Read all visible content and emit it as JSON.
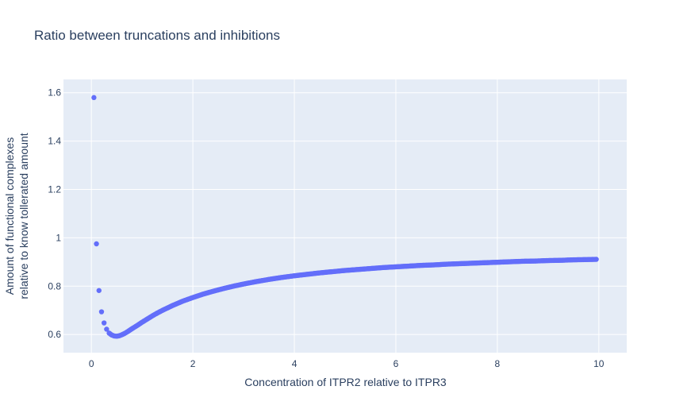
{
  "chart_data": {
    "type": "scatter",
    "title": "Ratio between truncations and inhibitions",
    "xlabel": "Concentration of ITPR2 relative to ITPR3",
    "ylabel_lines": [
      "Amount of functional complexes",
      "relative to know tollerated amount"
    ],
    "xlim": [
      -0.55,
      10.55
    ],
    "ylim": [
      0.525,
      1.655
    ],
    "x_ticks": [
      0,
      2,
      4,
      6,
      8,
      10
    ],
    "y_ticks": [
      0.6,
      0.8,
      1,
      1.2,
      1.4,
      1.6
    ],
    "x_tick_labels": [
      "0",
      "2",
      "4",
      "6",
      "8",
      "10"
    ],
    "y_tick_labels": [
      "0.6",
      "0.8",
      "1",
      "1.2",
      "1.4",
      "1.6"
    ],
    "grid": true,
    "series": [
      {
        "marker_color": "#636efa",
        "x": [
          0.05,
          0.1,
          0.15,
          0.2,
          0.25,
          0.3,
          0.35,
          0.4,
          0.45,
          0.5,
          0.55,
          0.6,
          0.65,
          0.7,
          0.75,
          0.8,
          0.9,
          1.0,
          1.1,
          1.2,
          1.3,
          1.4,
          1.5,
          1.6,
          1.8,
          2.0,
          2.2,
          2.4,
          2.6,
          2.8,
          3.0,
          3.25,
          3.5,
          3.75,
          4.0,
          4.25,
          4.5,
          4.75,
          5.0,
          5.25,
          5.5,
          5.75,
          6.0,
          6.25,
          6.5,
          6.75,
          7.0,
          7.25,
          7.5,
          7.75,
          8.0,
          8.25,
          8.5,
          8.75,
          9.0,
          9.25,
          9.5,
          9.75,
          9.95
        ],
        "y": [
          1.58,
          0.975,
          0.782,
          0.694,
          0.648,
          0.622,
          0.606,
          0.598,
          0.594,
          0.593,
          0.595,
          0.599,
          0.604,
          0.61,
          0.617,
          0.624,
          0.637,
          0.651,
          0.664,
          0.677,
          0.689,
          0.7,
          0.71,
          0.72,
          0.738,
          0.753,
          0.767,
          0.779,
          0.79,
          0.8,
          0.809,
          0.819,
          0.828,
          0.836,
          0.843,
          0.849,
          0.855,
          0.86,
          0.865,
          0.869,
          0.873,
          0.877,
          0.88,
          0.883,
          0.886,
          0.888,
          0.891,
          0.893,
          0.895,
          0.897,
          0.899,
          0.901,
          0.903,
          0.904,
          0.906,
          0.907,
          0.909,
          0.91,
          0.911
        ]
      }
    ]
  }
}
